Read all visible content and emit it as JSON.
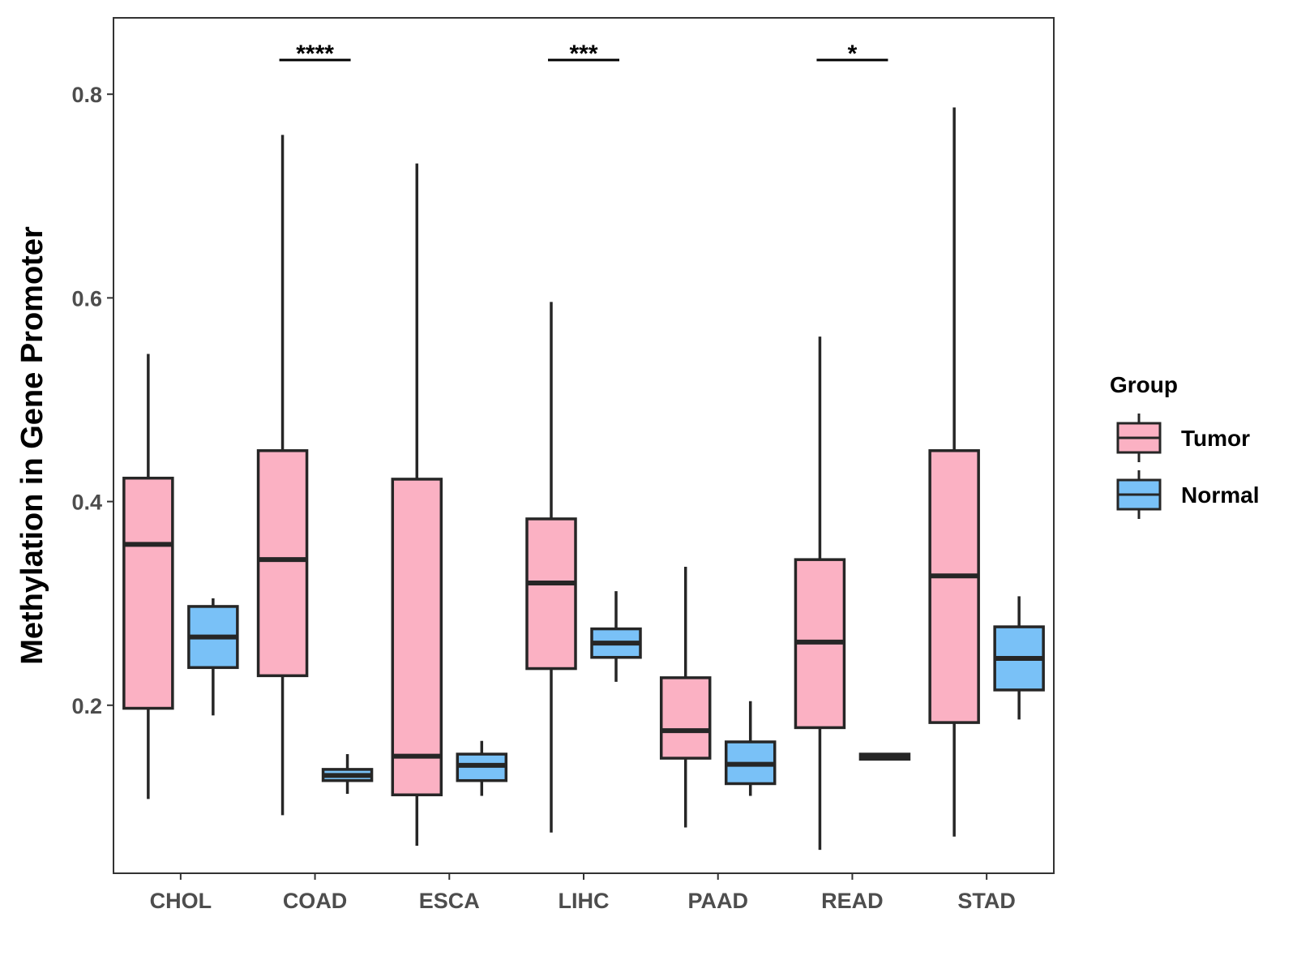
{
  "chart_data": {
    "type": "boxplot",
    "title": "",
    "xlabel": "",
    "ylabel": "Methylation in Gene Promoter",
    "ylim": [
      0.035,
      0.875
    ],
    "y_ticks": [
      0.2,
      0.4,
      0.6,
      0.8
    ],
    "y_tick_labels": [
      "0.2",
      "0.4",
      "0.6",
      "0.8"
    ],
    "categories": [
      "CHOL",
      "COAD",
      "ESCA",
      "LIHC",
      "PAAD",
      "READ",
      "STAD"
    ],
    "legend": {
      "title": "Group",
      "position": "right",
      "entries": [
        {
          "name": "Tumor",
          "color": "#fbb1c3"
        },
        {
          "name": "Normal",
          "color": "#79c1f7"
        }
      ]
    },
    "series": [
      {
        "name": "Tumor",
        "color": "#fbb1c3",
        "boxes": [
          {
            "min": 0.108,
            "q1": 0.197,
            "median": 0.358,
            "q3": 0.423,
            "max": 0.545
          },
          {
            "min": 0.092,
            "q1": 0.229,
            "median": 0.343,
            "q3": 0.45,
            "max": 0.76
          },
          {
            "min": 0.062,
            "q1": 0.112,
            "median": 0.15,
            "q3": 0.422,
            "max": 0.732
          },
          {
            "min": 0.075,
            "q1": 0.236,
            "median": 0.32,
            "q3": 0.383,
            "max": 0.596
          },
          {
            "min": 0.08,
            "q1": 0.148,
            "median": 0.175,
            "q3": 0.227,
            "max": 0.336
          },
          {
            "min": 0.058,
            "q1": 0.178,
            "median": 0.262,
            "q3": 0.343,
            "max": 0.562
          },
          {
            "min": 0.071,
            "q1": 0.183,
            "median": 0.327,
            "q3": 0.45,
            "max": 0.787
          }
        ]
      },
      {
        "name": "Normal",
        "color": "#79c1f7",
        "boxes": [
          {
            "min": 0.19,
            "q1": 0.237,
            "median": 0.267,
            "q3": 0.297,
            "max": 0.305
          },
          {
            "min": 0.113,
            "q1": 0.126,
            "median": 0.131,
            "q3": 0.137,
            "max": 0.152
          },
          {
            "min": 0.111,
            "q1": 0.126,
            "median": 0.141,
            "q3": 0.152,
            "max": 0.165
          },
          {
            "min": 0.223,
            "q1": 0.247,
            "median": 0.261,
            "q3": 0.275,
            "max": 0.312
          },
          {
            "min": 0.111,
            "q1": 0.123,
            "median": 0.142,
            "q3": 0.164,
            "max": 0.204
          },
          {
            "min": 0.146,
            "q1": 0.147,
            "median": 0.149,
            "q3": 0.152,
            "max": 0.153
          },
          {
            "min": 0.186,
            "q1": 0.215,
            "median": 0.246,
            "q3": 0.277,
            "max": 0.307
          }
        ]
      }
    ],
    "significance": [
      {
        "category": "COAD",
        "label": "****"
      },
      {
        "category": "LIHC",
        "label": "***"
      },
      {
        "category": "READ",
        "label": "*"
      }
    ]
  }
}
